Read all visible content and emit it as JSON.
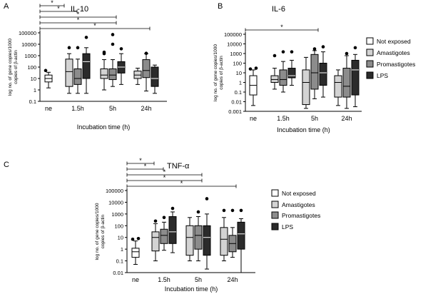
{
  "figure": {
    "tick_labels": [
      "100000",
      "10000",
      "1000",
      "100",
      "10",
      "1",
      "0.1",
      "0.01",
      "0.001"
    ],
    "group_labels": [
      "ne",
      "1.5h",
      "5h",
      "24h"
    ],
    "xlabel": "Incubation time (h)",
    "ylabel_line1": "log no. of gene copies/1000",
    "ylabel_line2": "copies of β-actin",
    "legend": [
      "Not exposed",
      "Amastigotes",
      "Promastigotes",
      "LPS"
    ],
    "colors": {
      "ne": "#ffffff",
      "ama": "#d3d3d3",
      "pro": "#8c8c8c",
      "lps": "#2b2b2b",
      "stroke": "#000000"
    },
    "sig_mark": "*"
  },
  "chart_data": [
    {
      "type": "boxplot",
      "panel": "A",
      "title": "IL-10",
      "xlabel": "Incubation time (h)",
      "ylabel": "log no. of gene copies/1000 copies of β-actin",
      "yscale": "log",
      "ylim": [
        0.1,
        100000
      ],
      "groups": [
        "ne",
        "1.5h",
        "5h",
        "24h"
      ],
      "series": [
        {
          "name": "Not exposed",
          "boxes": [
            {
              "group": "ne",
              "whislo": 1.5,
              "q1": 5,
              "med": 10,
              "q3": 20,
              "whishi": 35
            }
          ],
          "outliers": [
            {
              "group": "ne",
              "y": 50
            }
          ]
        },
        {
          "name": "Amastigotes",
          "boxes": [
            {
              "group": "1.5h",
              "whislo": 0.5,
              "q1": 2,
              "med": 40,
              "q3": 500,
              "whishi": 1500
            },
            {
              "group": "5h",
              "whislo": 1,
              "q1": 10,
              "med": 20,
              "q3": 70,
              "whishi": 450
            },
            {
              "group": "24h",
              "whislo": 3,
              "q1": 10,
              "med": 20,
              "q3": 45,
              "whishi": 80
            }
          ],
          "outliers": [
            {
              "group": "1.5h",
              "y": 5000
            },
            {
              "group": "5h",
              "y": 1500
            },
            {
              "group": "5h",
              "y": 2000
            }
          ]
        },
        {
          "name": "Promastigotes",
          "boxes": [
            {
              "group": "1.5h",
              "whislo": 0.5,
              "q1": 3,
              "med": 10,
              "q3": 70,
              "whishi": 500
            },
            {
              "group": "5h",
              "whislo": 2,
              "q1": 8,
              "med": 20,
              "q3": 70,
              "whishi": 450
            },
            {
              "group": "24h",
              "whislo": 0.8,
              "q1": 12,
              "med": 50,
              "q3": 450,
              "whishi": 1500
            }
          ],
          "outliers": [
            {
              "group": "1.5h",
              "y": 5000
            },
            {
              "group": "5h",
              "y": 70000
            },
            {
              "group": "5h",
              "y": 10000
            },
            {
              "group": "24h",
              "y": 1600
            }
          ]
        },
        {
          "name": "LPS",
          "boxes": [
            {
              "group": "1.5h",
              "whislo": 0.5,
              "q1": 10,
              "med": 300,
              "q3": 1500,
              "whishi": 5000
            },
            {
              "group": "5h",
              "whislo": 3,
              "q1": 30,
              "med": 100,
              "q3": 300,
              "whishi": 1500
            },
            {
              "group": "24h",
              "whislo": 0.5,
              "q1": 2,
              "med": 10,
              "q3": 100,
              "whishi": 150
            }
          ],
          "outliers": [
            {
              "group": "1.5h",
              "y": 40000
            },
            {
              "group": "5h",
              "y": 4000
            }
          ]
        }
      ],
      "significance": [
        {
          "from": "ne",
          "to": "1.5h"
        },
        {
          "from": "ne",
          "to": "1.5h"
        },
        {
          "from": "ne",
          "to": "5h"
        },
        {
          "from": "ne",
          "to": "5h"
        },
        {
          "from": "ne",
          "to": "24h"
        }
      ]
    },
    {
      "type": "boxplot",
      "panel": "B",
      "title": "IL-6",
      "xlabel": "Incubation time (h)",
      "ylabel": "log no. of gene copies/1000 copies of β-actin",
      "yscale": "log",
      "ylim": [
        0.001,
        100000
      ],
      "groups": [
        "ne",
        "1.5h",
        "5h",
        "24h"
      ],
      "series": [
        {
          "name": "Not exposed",
          "boxes": [
            {
              "group": "ne",
              "whislo": 0.004,
              "q1": 0.05,
              "med": 0.5,
              "q3": 5,
              "whishi": 20
            }
          ],
          "outliers": [
            {
              "group": "ne",
              "y": 25
            },
            {
              "group": "ne",
              "y": 30
            }
          ]
        },
        {
          "name": "Amastigotes",
          "boxes": [
            {
              "group": "1.5h",
              "whislo": 0.2,
              "q1": 1,
              "med": 2,
              "q3": 5,
              "whishi": 30
            },
            {
              "group": "5h",
              "whislo": 0.002,
              "q1": 0.005,
              "med": 1,
              "q3": 20,
              "whishi": 400
            },
            {
              "group": "24h",
              "whislo": 0.004,
              "q1": 0.03,
              "med": 1,
              "q3": 5,
              "whishi": 20
            }
          ],
          "outliers": [
            {
              "group": "1.5h",
              "y": 600
            }
          ]
        },
        {
          "name": "Promastigotes",
          "boxes": [
            {
              "group": "1.5h",
              "whislo": 0.1,
              "q1": 0.5,
              "med": 2,
              "q3": 20,
              "whishi": 150
            },
            {
              "group": "5h",
              "whislo": 0.02,
              "q1": 0.2,
              "med": 10,
              "q3": 800,
              "whishi": 2000
            },
            {
              "group": "24h",
              "whislo": 0.002,
              "q1": 0.03,
              "med": 0.4,
              "q3": 30,
              "whishi": 600
            }
          ],
          "outliers": [
            {
              "group": "1.5h",
              "y": 1500
            },
            {
              "group": "5h",
              "y": 3000
            },
            {
              "group": "24h",
              "y": 1000
            }
          ]
        },
        {
          "name": "LPS",
          "boxes": [
            {
              "group": "1.5h",
              "whislo": 0.5,
              "q1": 3,
              "med": 5,
              "q3": 30,
              "whishi": 200
            },
            {
              "group": "5h",
              "whislo": 0.03,
              "q1": 0.5,
              "med": 10,
              "q3": 100,
              "whishi": 1500
            },
            {
              "group": "24h",
              "whislo": 0.003,
              "q1": 0.05,
              "med": 20,
              "q3": 200,
              "whishi": 800
            }
          ],
          "outliers": [
            {
              "group": "1.5h",
              "y": 1500
            },
            {
              "group": "5h",
              "y": 5000
            },
            {
              "group": "24h",
              "y": 4000
            }
          ]
        }
      ],
      "significance": [
        {
          "from": "ne",
          "to": "5h"
        }
      ]
    },
    {
      "type": "boxplot",
      "panel": "C",
      "title": "TNF-α",
      "xlabel": "Incubation time (h)",
      "ylabel": "log no. of gene copies/1000 copies of β-actin",
      "yscale": "log",
      "ylim": [
        0.01,
        100000
      ],
      "groups": [
        "ne",
        "1.5h",
        "5h",
        "24h"
      ],
      "series": [
        {
          "name": "Not exposed",
          "boxes": [
            {
              "group": "ne",
              "whislo": 0.05,
              "q1": 0.2,
              "med": 0.6,
              "q3": 1.2,
              "whishi": 5
            }
          ],
          "outliers": [
            {
              "group": "ne",
              "y": 7
            },
            {
              "group": "ne",
              "y": 8
            }
          ]
        },
        {
          "name": "Amastigotes",
          "boxes": [
            {
              "group": "1.5h",
              "whislo": 0.1,
              "q1": 0.7,
              "med": 10,
              "q3": 30,
              "whishi": 150
            },
            {
              "group": "5h",
              "whislo": 0.1,
              "q1": 0.3,
              "med": 10,
              "q3": 100,
              "whishi": 500
            },
            {
              "group": "24h",
              "whislo": 0.1,
              "q1": 0.3,
              "med": 7,
              "q3": 70,
              "whishi": 500
            }
          ],
          "outliers": [
            {
              "group": "1.5h",
              "y": 250
            },
            {
              "group": "24h",
              "y": 2000
            }
          ]
        },
        {
          "name": "Promastigotes",
          "boxes": [
            {
              "group": "1.5h",
              "whislo": 0.8,
              "q1": 3,
              "med": 15,
              "q3": 50,
              "whishi": 200
            },
            {
              "group": "5h",
              "whislo": 0.1,
              "q1": 1,
              "med": 15,
              "q3": 100,
              "whishi": 600
            },
            {
              "group": "24h",
              "whislo": 0.2,
              "q1": 0.6,
              "med": 3,
              "q3": 15,
              "whishi": 70
            }
          ],
          "outliers": [
            {
              "group": "1.5h",
              "y": 500
            },
            {
              "group": "5h",
              "y": 1500
            },
            {
              "group": "24h",
              "y": 2000
            }
          ]
        },
        {
          "name": "LPS",
          "boxes": [
            {
              "group": "1.5h",
              "whislo": 0.5,
              "q1": 3,
              "med": 30,
              "q3": 600,
              "whishi": 1500
            },
            {
              "group": "5h",
              "whislo": 0.02,
              "q1": 0.3,
              "med": 10,
              "q3": 100,
              "whishi": 1000
            },
            {
              "group": "24h",
              "whislo": 0.01,
              "q1": 1,
              "med": 20,
              "q3": 200,
              "whishi": 400
            }
          ],
          "outliers": [
            {
              "group": "1.5h",
              "y": 3000
            },
            {
              "group": "5h",
              "y": 20000
            },
            {
              "group": "24h",
              "y": 2000
            }
          ]
        }
      ],
      "significance": [
        {
          "from": "ne",
          "to": "1.5h"
        },
        {
          "from": "ne",
          "to": "1.5h"
        },
        {
          "from": "ne",
          "to": "5h"
        },
        {
          "from": "ne",
          "to": "5h"
        },
        {
          "from": "ne",
          "to": "24h"
        }
      ]
    }
  ]
}
